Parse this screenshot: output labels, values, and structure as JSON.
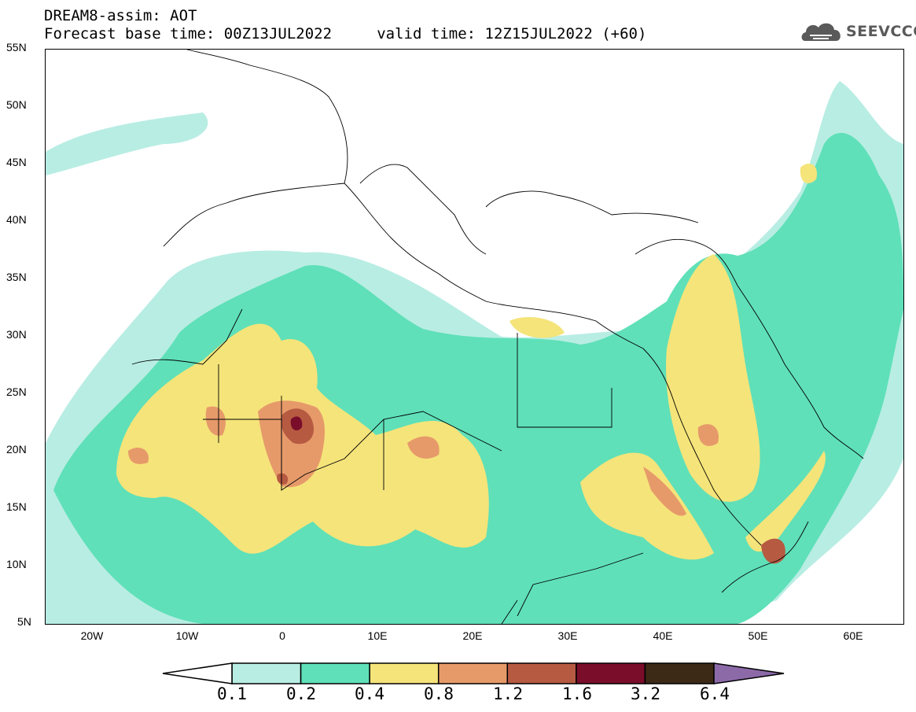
{
  "header": {
    "title": "DREAM8-assim: AOT",
    "line2": "Forecast base time: 00Z13JUL2022     valid time: 12Z15JUL2022 (+60)"
  },
  "logo": {
    "text": "SEEVCCC"
  },
  "map": {
    "lat_ticks": [
      "55N",
      "50N",
      "45N",
      "40N",
      "35N",
      "30N",
      "25N",
      "20N",
      "15N",
      "10N",
      "5N"
    ],
    "lon_ticks": [
      "20W",
      "10W",
      "0",
      "10E",
      "20E",
      "30E",
      "40E",
      "50E",
      "60E"
    ],
    "lat_range": [
      5,
      55
    ],
    "lon_range": [
      -25,
      65
    ]
  },
  "colorbar": {
    "labels": [
      "0.1",
      "0.2",
      "0.4",
      "0.8",
      "1.2",
      "1.6",
      "3.2",
      "6.4"
    ],
    "colors": [
      "#b8ede3",
      "#5fe0b8",
      "#f5e47a",
      "#e69a6a",
      "#b65a42",
      "#7a0e2a",
      "#3d2a16"
    ],
    "over_color": "#8c6aa8",
    "under_color": "#ffffff"
  }
}
